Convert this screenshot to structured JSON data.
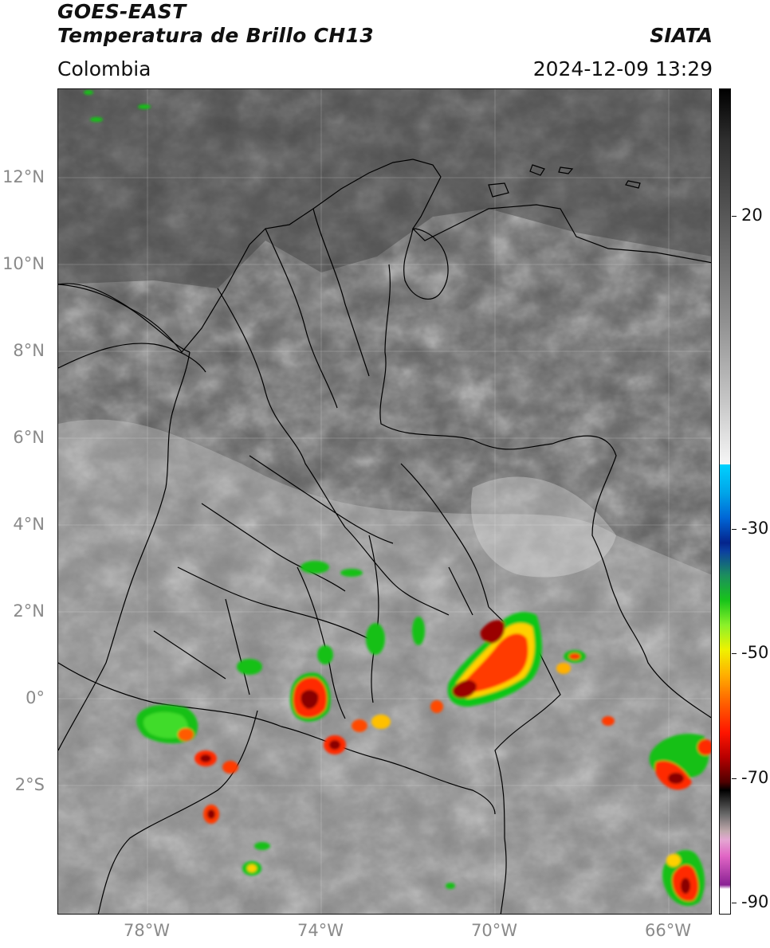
{
  "header": {
    "title_line1": "GOES-EAST",
    "title_line2": "Temperatura de Brillo CH13",
    "region": "Colombia",
    "brand": "SIATA",
    "timestamp": "2024-12-09 13:29"
  },
  "map": {
    "lat_ticks": [
      "12°N",
      "10°N",
      "8°N",
      "6°N",
      "4°N",
      "2°N",
      "0°",
      "2°S"
    ],
    "lon_ticks": [
      "78°W",
      "74°W",
      "70°W",
      "66°W"
    ]
  },
  "colorbar": {
    "tick_labels": [
      "20",
      "-30",
      "-50",
      "-70",
      "-90"
    ],
    "colors": {
      "warm_black": "#000000",
      "gray_mid": "#8f8f8f",
      "white": "#f6f6f6",
      "cyan": "#00d2ff",
      "blue": "#04248c",
      "green": "#18c41a",
      "yellow": "#f0f200",
      "orange": "#ff6a00",
      "red": "#ff1500",
      "dark_red": "#500000",
      "pink": "#e166c5",
      "purple": "#8a2194"
    }
  }
}
